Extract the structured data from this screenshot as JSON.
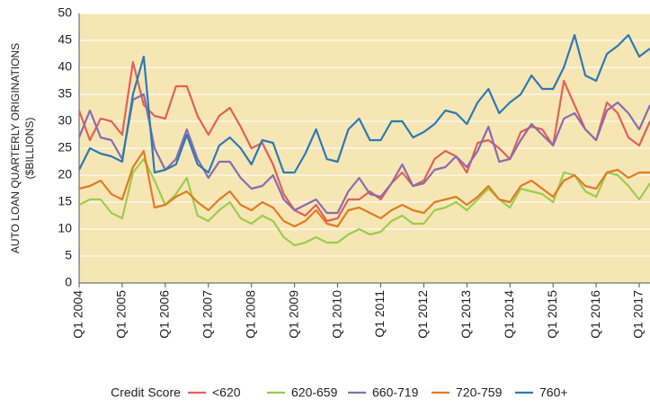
{
  "chart_data": {
    "type": "line",
    "ylabel": [
      "AUTO LOAN QUARTERLY ORIGINATIONS",
      "($BILLIONS)"
    ],
    "legend_title": "Credit Score",
    "categories": [
      "Q1 2004",
      null,
      null,
      null,
      "Q1 2005",
      null,
      null,
      null,
      "Q1 2006",
      null,
      null,
      null,
      "Q1 2007",
      null,
      null,
      null,
      "Q1 2008",
      null,
      null,
      null,
      "Q1 2009",
      null,
      null,
      null,
      "Q1 2010",
      null,
      null,
      null,
      "Q1 2011",
      null,
      null,
      null,
      "Q1 2012",
      null,
      null,
      null,
      "Q1 2013",
      null,
      null,
      null,
      "Q1 2014",
      null,
      null,
      null,
      "Q1 2015",
      null,
      null,
      null,
      "Q1 2016",
      null,
      null,
      null,
      "Q1 2017",
      null
    ],
    "ylim": [
      0,
      50
    ],
    "yticks": [
      0,
      5,
      10,
      15,
      20,
      25,
      30,
      35,
      40,
      45,
      50
    ],
    "grid": true,
    "series": [
      {
        "name": "<620",
        "color": "#e0605a",
        "values": [
          32,
          26.5,
          30.5,
          30,
          27.5,
          41,
          33,
          31,
          30.5,
          36.5,
          36.5,
          31,
          27.5,
          31,
          32.5,
          29,
          25,
          26,
          22,
          16.5,
          13.5,
          12.5,
          14.5,
          11.5,
          12,
          15.5,
          15.5,
          17,
          15.5,
          18.5,
          20.5,
          18,
          19,
          23,
          24.5,
          23.5,
          20.5,
          26,
          26.5,
          25,
          23,
          28,
          29,
          28.5,
          25.5,
          37.5,
          33,
          28.5,
          26.5,
          33.5,
          31.5,
          27,
          25.5,
          30
        ]
      },
      {
        "name": "620-659",
        "color": "#9ccc4e",
        "values": [
          14.5,
          15.5,
          15.5,
          13,
          12,
          20.5,
          23,
          19,
          14.5,
          16.5,
          19.5,
          12.5,
          11.5,
          13.5,
          15,
          12,
          11,
          12.5,
          11.5,
          8.5,
          7,
          7.5,
          8.5,
          7.5,
          7.5,
          9,
          10,
          9,
          9.5,
          11.5,
          12.5,
          11,
          11,
          13.5,
          14,
          15,
          13.5,
          15.5,
          17.5,
          15.5,
          14,
          17.5,
          17,
          16.5,
          15,
          20.5,
          20,
          17,
          16,
          20.5,
          20,
          18,
          15.5,
          18.5
        ]
      },
      {
        "name": "660-719",
        "color": "#8a6bb0",
        "values": [
          27,
          32,
          27,
          26.5,
          23,
          34,
          35,
          25,
          21,
          23,
          28.5,
          23,
          19.5,
          22.5,
          22.5,
          19.5,
          17.5,
          18,
          20,
          15.5,
          13.5,
          14.5,
          15.5,
          13,
          13,
          17,
          19.5,
          16.5,
          16,
          18.5,
          22,
          18,
          18.5,
          21,
          21.5,
          23.5,
          21.5,
          24.5,
          29,
          22.5,
          23,
          26.5,
          29.5,
          27.5,
          25.5,
          30.5,
          31.5,
          28.5,
          26.5,
          32,
          33.5,
          31.5,
          28.5,
          33
        ]
      },
      {
        "name": "720-759",
        "color": "#e07b24",
        "values": [
          17.5,
          18,
          19,
          16.5,
          15.5,
          21.5,
          24.5,
          14,
          14.5,
          16,
          17,
          15,
          13.5,
          15.5,
          17,
          14.5,
          13.5,
          15,
          14,
          11.5,
          10.5,
          11.5,
          13.5,
          11,
          10.5,
          13.5,
          14,
          13,
          12,
          13.5,
          14.5,
          13.5,
          13,
          15,
          15.5,
          16,
          14.5,
          16,
          18,
          15.5,
          15,
          18,
          19,
          17.5,
          16,
          19,
          20,
          18,
          17.5,
          20.5,
          21,
          19.5,
          20.5,
          20.5
        ]
      },
      {
        "name": "760+",
        "color": "#2a7ab5",
        "values": [
          21,
          25,
          24,
          23.5,
          22.5,
          35,
          42,
          20.5,
          21,
          22,
          27.5,
          22,
          20.5,
          25.5,
          27,
          25,
          22,
          26.5,
          26,
          20.5,
          20.5,
          24,
          28.5,
          23,
          22.5,
          28.5,
          30.5,
          26.5,
          26.5,
          30,
          30,
          27,
          28,
          29.5,
          32,
          31.5,
          29.5,
          33.5,
          36,
          31.5,
          33.5,
          35,
          38.5,
          36,
          36,
          40,
          46,
          38.5,
          37.5,
          42.5,
          44,
          46,
          42,
          43.5
        ]
      }
    ]
  }
}
